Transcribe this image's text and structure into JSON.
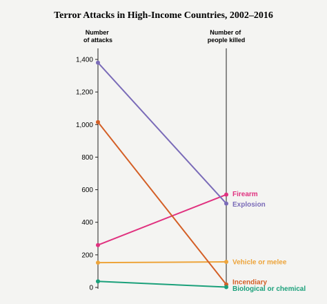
{
  "chart_data": {
    "type": "line",
    "title": "Terror Attacks in High-Income Countries, 2002–2016",
    "left_axis_label": [
      "Number",
      "of attacks"
    ],
    "right_axis_label": [
      "Number of",
      "people killed"
    ],
    "ylim": [
      0,
      1400
    ],
    "yticks": [
      0,
      200,
      400,
      600,
      800,
      1000,
      1200,
      1400
    ],
    "ytick_labels": [
      "0",
      "200",
      "400",
      "600",
      "800",
      "1,000",
      "1,200",
      "1,400"
    ],
    "series": [
      {
        "name": "Firearm",
        "color": "#e0317f",
        "attacks": 260,
        "killed": 570
      },
      {
        "name": "Explosion",
        "color": "#7a6bb8",
        "attacks": 1380,
        "killed": 515
      },
      {
        "name": "Vehicle or melee",
        "color": "#eda43a",
        "attacks": 152,
        "killed": 157
      },
      {
        "name": "Incendiary",
        "color": "#d45f26",
        "attacks": 1015,
        "killed": 18
      },
      {
        "name": "Biological or chemical",
        "color": "#1aa07a",
        "attacks": 37,
        "killed": 2
      }
    ]
  }
}
